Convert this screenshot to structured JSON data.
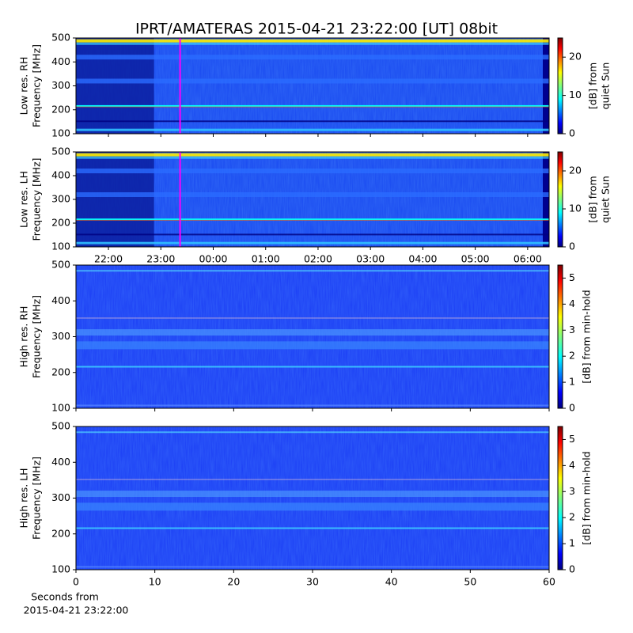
{
  "chart_data": [
    {
      "type": "heatmap",
      "title": "IPRT/AMATERAS 2015-04-21 23:22:00 [UT]   08bit",
      "ylabel": [
        "Low res. RH",
        "Frequency [MHz]"
      ],
      "ylim": [
        100,
        500
      ],
      "yticks": [
        100,
        200,
        300,
        400,
        500
      ],
      "xlim": [
        21.38,
        30.41
      ],
      "marker_x": 23.367,
      "marker_color": "#ff00ff",
      "colorbar_label": [
        "[dB] from",
        "quiet Sun"
      ],
      "clim": [
        0,
        25
      ],
      "cticks": [
        0,
        10,
        20
      ]
    },
    {
      "type": "heatmap",
      "ylabel": [
        "Low res. LH",
        "Frequency [MHz]"
      ],
      "ylim": [
        100,
        500
      ],
      "yticks": [
        100,
        200,
        300,
        400,
        500
      ],
      "xlim": [
        21.38,
        30.41
      ],
      "xticks": [
        {
          "value": 22,
          "label": "22:00"
        },
        {
          "value": 23,
          "label": "23:00"
        },
        {
          "value": 24,
          "label": "00:00"
        },
        {
          "value": 25,
          "label": "01:00"
        },
        {
          "value": 26,
          "label": "02:00"
        },
        {
          "value": 27,
          "label": "03:00"
        },
        {
          "value": 28,
          "label": "04:00"
        },
        {
          "value": 29,
          "label": "05:00"
        },
        {
          "value": 30,
          "label": "06:00"
        }
      ],
      "marker_x": 23.367,
      "marker_color": "#ff00ff",
      "colorbar_label": [
        "[dB] from",
        "quiet Sun"
      ],
      "clim": [
        0,
        25
      ],
      "cticks": [
        0,
        10,
        20
      ]
    },
    {
      "type": "heatmap",
      "ylabel": [
        "High res. RH",
        "Frequency [MHz]"
      ],
      "ylim": [
        100,
        500
      ],
      "yticks": [
        100,
        200,
        300,
        400,
        500
      ],
      "xlim": [
        0,
        60
      ],
      "colorbar_label": [
        "[dB] from min-hold"
      ],
      "clim": [
        0,
        5.5
      ],
      "cticks": [
        0,
        1,
        2,
        3,
        4,
        5
      ]
    },
    {
      "type": "heatmap",
      "ylabel": [
        "High res. LH",
        "Frequency [MHz]"
      ],
      "ylim": [
        100,
        500
      ],
      "yticks": [
        100,
        200,
        300,
        400,
        500
      ],
      "xlim": [
        0,
        60
      ],
      "xticks": [
        0,
        10,
        20,
        30,
        40,
        50,
        60
      ],
      "xlabel": [
        "Seconds from",
        "2015-04-21 23:22:00"
      ],
      "colorbar_label": [
        "[dB] from min-hold"
      ],
      "clim": [
        0,
        5.5
      ],
      "cticks": [
        0,
        1,
        2,
        3,
        4,
        5
      ]
    }
  ]
}
